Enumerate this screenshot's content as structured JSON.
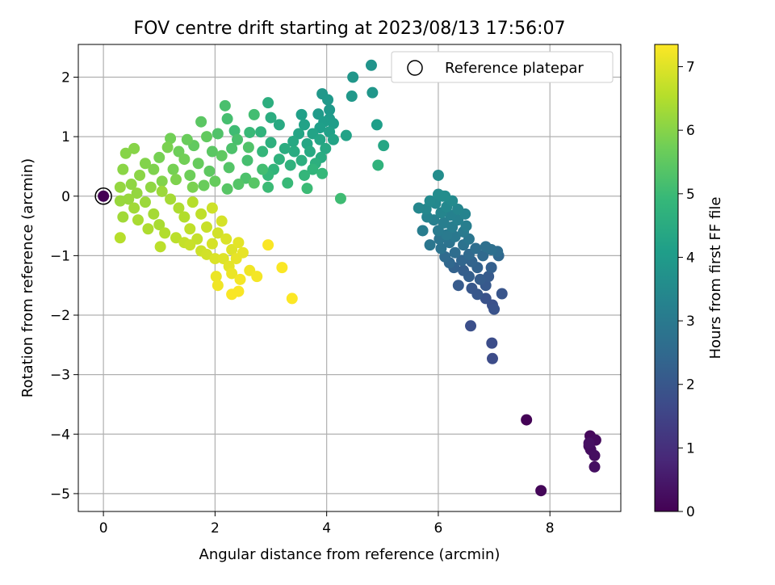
{
  "chart_data": {
    "type": "scatter",
    "title": "FOV centre drift starting at 2023/08/13 17:56:07",
    "xlabel": "Angular distance from reference (arcmin)",
    "ylabel": "Rotation from reference (arcmin)",
    "xlim": [
      -0.45,
      9.27
    ],
    "ylim": [
      -5.3,
      2.55
    ],
    "xticks": [
      0,
      2,
      4,
      6,
      8
    ],
    "yticks": [
      -5,
      -4,
      -3,
      -2,
      -1,
      0,
      1,
      2
    ],
    "xtick_labels": [
      "0",
      "2",
      "4",
      "6",
      "8"
    ],
    "ytick_labels": [
      "−5",
      "−4",
      "−3",
      "−2",
      "−1",
      "0",
      "1",
      "2"
    ],
    "grid": true,
    "legend": {
      "position": "top-right",
      "label": "Reference platepar"
    },
    "reference_point": {
      "x": 0,
      "y": 0
    },
    "colorbar": {
      "label": "Hours from first FF file",
      "range": [
        0,
        7.35
      ],
      "ticks": [
        0,
        1,
        2,
        3,
        4,
        5,
        6,
        7
      ],
      "tick_labels": [
        "0",
        "1",
        "2",
        "3",
        "4",
        "5",
        "6",
        "7"
      ],
      "colormap": "viridis"
    },
    "colormap_stops": [
      "#440154",
      "#482878",
      "#3e4989",
      "#31688e",
      "#26828e",
      "#1f9e89",
      "#35b779",
      "#6ece58",
      "#b5de2b",
      "#fde725"
    ],
    "ref_fill": "#440154",
    "grid_color": "#b0b0b0",
    "points": [
      {
        "x": 7.58,
        "y": -3.76,
        "t": 0.05
      },
      {
        "x": 7.84,
        "y": -4.95,
        "t": 0.1
      },
      {
        "x": 8.72,
        "y": -4.03,
        "t": 0.15
      },
      {
        "x": 8.82,
        "y": -4.1,
        "t": 0.2
      },
      {
        "x": 8.7,
        "y": -4.2,
        "t": 0.22
      },
      {
        "x": 8.73,
        "y": -4.26,
        "t": 0.25
      },
      {
        "x": 8.8,
        "y": -4.36,
        "t": 0.28
      },
      {
        "x": 8.8,
        "y": -4.55,
        "t": 0.3
      },
      {
        "x": 8.7,
        "y": -4.15,
        "t": 0.32
      },
      {
        "x": 6.97,
        "y": -2.73,
        "t": 1.7
      },
      {
        "x": 6.96,
        "y": -2.47,
        "t": 1.75
      },
      {
        "x": 6.58,
        "y": -2.18,
        "t": 1.8
      },
      {
        "x": 6.97,
        "y": -1.83,
        "t": 1.85
      },
      {
        "x": 6.85,
        "y": -1.72,
        "t": 1.9
      },
      {
        "x": 7.0,
        "y": -1.9,
        "t": 1.9
      },
      {
        "x": 7.14,
        "y": -1.64,
        "t": 1.95
      },
      {
        "x": 6.7,
        "y": -1.65,
        "t": 2.0
      },
      {
        "x": 6.6,
        "y": -1.55,
        "t": 2.0
      },
      {
        "x": 6.85,
        "y": -1.5,
        "t": 2.05
      },
      {
        "x": 6.36,
        "y": -1.5,
        "t": 2.1
      },
      {
        "x": 6.9,
        "y": -1.35,
        "t": 2.1
      },
      {
        "x": 6.75,
        "y": -1.4,
        "t": 2.15
      },
      {
        "x": 6.55,
        "y": -1.35,
        "t": 2.2
      },
      {
        "x": 6.45,
        "y": -1.25,
        "t": 2.2
      },
      {
        "x": 6.95,
        "y": -1.2,
        "t": 2.25
      },
      {
        "x": 6.7,
        "y": -1.2,
        "t": 2.3
      },
      {
        "x": 6.28,
        "y": -1.2,
        "t": 2.3
      },
      {
        "x": 6.6,
        "y": -1.1,
        "t": 2.35
      },
      {
        "x": 6.42,
        "y": -1.08,
        "t": 2.4
      },
      {
        "x": 6.2,
        "y": -1.12,
        "t": 2.45
      },
      {
        "x": 7.08,
        "y": -1.0,
        "t": 2.45
      },
      {
        "x": 6.8,
        "y": -1.0,
        "t": 2.5
      },
      {
        "x": 6.55,
        "y": -0.98,
        "t": 2.5
      },
      {
        "x": 6.12,
        "y": -1.02,
        "t": 2.55
      },
      {
        "x": 6.3,
        "y": -0.95,
        "t": 2.6
      },
      {
        "x": 7.06,
        "y": -0.93,
        "t": 2.6
      },
      {
        "x": 6.67,
        "y": -0.88,
        "t": 2.65
      },
      {
        "x": 6.85,
        "y": -0.85,
        "t": 2.7
      },
      {
        "x": 6.95,
        "y": -0.9,
        "t": 2.7
      },
      {
        "x": 6.45,
        "y": -0.82,
        "t": 2.75
      },
      {
        "x": 6.05,
        "y": -0.88,
        "t": 2.8
      },
      {
        "x": 6.2,
        "y": -0.78,
        "t": 2.8
      },
      {
        "x": 6.02,
        "y": -0.72,
        "t": 2.85
      },
      {
        "x": 5.85,
        "y": -0.82,
        "t": 2.9
      },
      {
        "x": 6.55,
        "y": -0.72,
        "t": 2.9
      },
      {
        "x": 6.3,
        "y": -0.68,
        "t": 2.95
      },
      {
        "x": 6.15,
        "y": -0.65,
        "t": 3.0
      },
      {
        "x": 6.45,
        "y": -0.6,
        "t": 3.0
      },
      {
        "x": 6.0,
        "y": -0.58,
        "t": 3.05
      },
      {
        "x": 6.25,
        "y": -0.52,
        "t": 3.1
      },
      {
        "x": 5.72,
        "y": -0.58,
        "t": 3.1
      },
      {
        "x": 6.5,
        "y": -0.5,
        "t": 3.15
      },
      {
        "x": 6.1,
        "y": -0.45,
        "t": 3.15
      },
      {
        "x": 6.35,
        "y": -0.4,
        "t": 3.2
      },
      {
        "x": 5.92,
        "y": -0.4,
        "t": 3.2
      },
      {
        "x": 6.22,
        "y": -0.32,
        "t": 3.25
      },
      {
        "x": 5.8,
        "y": -0.35,
        "t": 3.3
      },
      {
        "x": 6.48,
        "y": -0.3,
        "t": 3.3
      },
      {
        "x": 6.05,
        "y": -0.28,
        "t": 3.35
      },
      {
        "x": 6.35,
        "y": -0.22,
        "t": 3.35
      },
      {
        "x": 5.78,
        "y": -0.22,
        "t": 3.4
      },
      {
        "x": 5.65,
        "y": -0.2,
        "t": 3.4
      },
      {
        "x": 6.15,
        "y": -0.18,
        "t": 3.45
      },
      {
        "x": 5.95,
        "y": -0.12,
        "t": 3.45
      },
      {
        "x": 6.25,
        "y": -0.08,
        "t": 3.5
      },
      {
        "x": 5.85,
        "y": -0.08,
        "t": 3.5
      },
      {
        "x": 6.08,
        "y": 0.0,
        "t": 3.55
      },
      {
        "x": 6.0,
        "y": 0.03,
        "t": 3.55
      },
      {
        "x": 6.12,
        "y": 0.0,
        "t": 3.6
      },
      {
        "x": 6.0,
        "y": 0.35,
        "t": 3.6
      },
      {
        "x": 4.8,
        "y": 2.2,
        "t": 3.8
      },
      {
        "x": 4.47,
        "y": 2.0,
        "t": 3.85
      },
      {
        "x": 4.82,
        "y": 1.74,
        "t": 3.85
      },
      {
        "x": 4.45,
        "y": 1.68,
        "t": 3.9
      },
      {
        "x": 3.92,
        "y": 1.72,
        "t": 3.9
      },
      {
        "x": 4.02,
        "y": 1.62,
        "t": 3.95
      },
      {
        "x": 4.05,
        "y": 1.45,
        "t": 3.95
      },
      {
        "x": 3.85,
        "y": 1.38,
        "t": 4.0
      },
      {
        "x": 4.05,
        "y": 1.3,
        "t": 4.0
      },
      {
        "x": 3.95,
        "y": 1.25,
        "t": 4.05
      },
      {
        "x": 4.12,
        "y": 1.22,
        "t": 4.05
      },
      {
        "x": 4.9,
        "y": 1.2,
        "t": 4.1
      },
      {
        "x": 3.88,
        "y": 1.15,
        "t": 4.1
      },
      {
        "x": 4.05,
        "y": 1.08,
        "t": 4.15
      },
      {
        "x": 3.55,
        "y": 1.37,
        "t": 4.15
      },
      {
        "x": 3.6,
        "y": 1.2,
        "t": 4.2
      },
      {
        "x": 4.35,
        "y": 1.02,
        "t": 4.2
      },
      {
        "x": 4.12,
        "y": 0.95,
        "t": 4.25
      },
      {
        "x": 3.75,
        "y": 1.05,
        "t": 4.25
      },
      {
        "x": 3.5,
        "y": 1.05,
        "t": 4.3
      },
      {
        "x": 3.88,
        "y": 0.95,
        "t": 4.3
      },
      {
        "x": 5.02,
        "y": 0.85,
        "t": 4.35
      },
      {
        "x": 3.65,
        "y": 0.88,
        "t": 4.35
      },
      {
        "x": 3.4,
        "y": 0.92,
        "t": 4.4
      },
      {
        "x": 3.98,
        "y": 0.8,
        "t": 4.4
      },
      {
        "x": 3.15,
        "y": 1.2,
        "t": 4.45
      },
      {
        "x": 3.7,
        "y": 0.75,
        "t": 4.45
      },
      {
        "x": 3.42,
        "y": 0.75,
        "t": 4.5
      },
      {
        "x": 3.9,
        "y": 0.65,
        "t": 4.5
      },
      {
        "x": 3.25,
        "y": 0.8,
        "t": 4.55
      },
      {
        "x": 3.0,
        "y": 1.32,
        "t": 4.55
      },
      {
        "x": 2.95,
        "y": 1.57,
        "t": 4.6
      },
      {
        "x": 3.55,
        "y": 0.6,
        "t": 4.6
      },
      {
        "x": 3.8,
        "y": 0.55,
        "t": 4.65
      },
      {
        "x": 3.0,
        "y": 0.9,
        "t": 4.65
      },
      {
        "x": 3.35,
        "y": 0.52,
        "t": 4.7
      },
      {
        "x": 3.15,
        "y": 0.62,
        "t": 4.7
      },
      {
        "x": 2.82,
        "y": 1.08,
        "t": 4.75
      },
      {
        "x": 4.92,
        "y": 0.52,
        "t": 4.75
      },
      {
        "x": 3.75,
        "y": 0.45,
        "t": 4.8
      },
      {
        "x": 3.05,
        "y": 0.45,
        "t": 4.8
      },
      {
        "x": 2.85,
        "y": 0.75,
        "t": 4.85
      },
      {
        "x": 3.6,
        "y": 0.35,
        "t": 4.85
      },
      {
        "x": 2.95,
        "y": 0.35,
        "t": 4.9
      },
      {
        "x": 3.92,
        "y": 0.38,
        "t": 4.9
      },
      {
        "x": 2.62,
        "y": 1.07,
        "t": 4.95
      },
      {
        "x": 3.3,
        "y": 0.22,
        "t": 4.95
      },
      {
        "x": 2.95,
        "y": 0.15,
        "t": 5.0
      },
      {
        "x": 3.65,
        "y": 0.13,
        "t": 5.0
      },
      {
        "x": 4.25,
        "y": -0.04,
        "t": 5.05
      },
      {
        "x": 2.35,
        "y": 1.1,
        "t": 5.05
      },
      {
        "x": 2.7,
        "y": 1.37,
        "t": 5.1
      },
      {
        "x": 2.85,
        "y": 0.45,
        "t": 5.1
      },
      {
        "x": 2.22,
        "y": 1.3,
        "t": 5.15
      },
      {
        "x": 2.58,
        "y": 0.6,
        "t": 5.15
      },
      {
        "x": 2.4,
        "y": 0.95,
        "t": 5.2
      },
      {
        "x": 2.18,
        "y": 1.52,
        "t": 5.2
      },
      {
        "x": 2.55,
        "y": 0.3,
        "t": 5.25
      },
      {
        "x": 2.3,
        "y": 0.8,
        "t": 5.25
      },
      {
        "x": 2.6,
        "y": 0.82,
        "t": 5.3
      },
      {
        "x": 2.05,
        "y": 1.05,
        "t": 5.3
      },
      {
        "x": 2.25,
        "y": 0.48,
        "t": 5.35
      },
      {
        "x": 2.42,
        "y": 0.2,
        "t": 5.35
      },
      {
        "x": 2.7,
        "y": 0.22,
        "t": 5.4
      },
      {
        "x": 2.22,
        "y": 0.12,
        "t": 5.4
      },
      {
        "x": 1.95,
        "y": 0.75,
        "t": 5.45
      },
      {
        "x": 1.75,
        "y": 1.25,
        "t": 5.45
      },
      {
        "x": 1.9,
        "y": 0.42,
        "t": 5.5
      },
      {
        "x": 2.12,
        "y": 0.68,
        "t": 5.5
      },
      {
        "x": 1.85,
        "y": 1.0,
        "t": 5.55
      },
      {
        "x": 1.62,
        "y": 0.85,
        "t": 5.55
      },
      {
        "x": 2.0,
        "y": 0.25,
        "t": 5.6
      },
      {
        "x": 1.7,
        "y": 0.55,
        "t": 5.6
      },
      {
        "x": 1.5,
        "y": 0.95,
        "t": 5.65
      },
      {
        "x": 1.8,
        "y": 0.18,
        "t": 5.65
      },
      {
        "x": 1.55,
        "y": 0.35,
        "t": 5.7
      },
      {
        "x": 1.35,
        "y": 0.75,
        "t": 5.7
      },
      {
        "x": 1.2,
        "y": 0.97,
        "t": 5.75
      },
      {
        "x": 1.45,
        "y": 0.62,
        "t": 5.75
      },
      {
        "x": 1.25,
        "y": 0.45,
        "t": 5.8
      },
      {
        "x": 1.0,
        "y": 0.65,
        "t": 5.8
      },
      {
        "x": 1.6,
        "y": 0.15,
        "t": 5.85
      },
      {
        "x": 1.15,
        "y": 0.82,
        "t": 5.85
      },
      {
        "x": 1.3,
        "y": 0.28,
        "t": 5.9
      },
      {
        "x": 0.9,
        "y": 0.45,
        "t": 5.9
      },
      {
        "x": 1.05,
        "y": 0.25,
        "t": 5.95
      },
      {
        "x": 0.75,
        "y": 0.55,
        "t": 5.95
      },
      {
        "x": 0.55,
        "y": 0.8,
        "t": 6.0
      },
      {
        "x": 0.4,
        "y": 0.72,
        "t": 6.0
      },
      {
        "x": 0.65,
        "y": 0.35,
        "t": 6.05
      },
      {
        "x": 0.35,
        "y": 0.45,
        "t": 6.05
      },
      {
        "x": 0.85,
        "y": 0.15,
        "t": 6.1
      },
      {
        "x": 0.5,
        "y": 0.2,
        "t": 6.1
      },
      {
        "x": 0.3,
        "y": 0.15,
        "t": 6.15
      },
      {
        "x": 0.6,
        "y": 0.05,
        "t": 6.15
      },
      {
        "x": 0.45,
        "y": -0.05,
        "t": 6.2
      },
      {
        "x": 0.3,
        "y": -0.08,
        "t": 6.2
      },
      {
        "x": 0.75,
        "y": -0.1,
        "t": 6.25
      },
      {
        "x": 1.05,
        "y": 0.08,
        "t": 6.25
      },
      {
        "x": 0.55,
        "y": -0.2,
        "t": 6.3
      },
      {
        "x": 0.35,
        "y": -0.35,
        "t": 6.3
      },
      {
        "x": 0.9,
        "y": -0.3,
        "t": 6.35
      },
      {
        "x": 1.2,
        "y": -0.05,
        "t": 6.35
      },
      {
        "x": 0.62,
        "y": -0.4,
        "t": 6.4
      },
      {
        "x": 1.0,
        "y": -0.48,
        "t": 6.4
      },
      {
        "x": 1.35,
        "y": -0.2,
        "t": 6.45
      },
      {
        "x": 0.8,
        "y": -0.55,
        "t": 6.45
      },
      {
        "x": 1.1,
        "y": -0.62,
        "t": 6.5
      },
      {
        "x": 1.45,
        "y": -0.35,
        "t": 6.5
      },
      {
        "x": 0.3,
        "y": -0.7,
        "t": 6.55
      },
      {
        "x": 1.6,
        "y": -0.1,
        "t": 6.55
      },
      {
        "x": 1.3,
        "y": -0.7,
        "t": 6.6
      },
      {
        "x": 1.02,
        "y": -0.85,
        "t": 6.6
      },
      {
        "x": 1.55,
        "y": -0.55,
        "t": 6.65
      },
      {
        "x": 1.75,
        "y": -0.3,
        "t": 6.65
      },
      {
        "x": 1.45,
        "y": -0.78,
        "t": 6.7
      },
      {
        "x": 1.68,
        "y": -0.72,
        "t": 6.7
      },
      {
        "x": 1.55,
        "y": -0.82,
        "t": 6.75
      },
      {
        "x": 1.85,
        "y": -0.52,
        "t": 6.75
      },
      {
        "x": 1.95,
        "y": -0.2,
        "t": 6.8
      },
      {
        "x": 1.75,
        "y": -0.92,
        "t": 6.8
      },
      {
        "x": 2.05,
        "y": -0.62,
        "t": 6.85
      },
      {
        "x": 1.85,
        "y": -0.98,
        "t": 6.85
      },
      {
        "x": 2.12,
        "y": -0.42,
        "t": 6.9
      },
      {
        "x": 1.95,
        "y": -0.8,
        "t": 6.9
      },
      {
        "x": 2.0,
        "y": -1.05,
        "t": 6.95
      },
      {
        "x": 2.2,
        "y": -0.72,
        "t": 6.95
      },
      {
        "x": 2.3,
        "y": -0.9,
        "t": 7.0
      },
      {
        "x": 2.15,
        "y": -1.05,
        "t": 7.0
      },
      {
        "x": 2.42,
        "y": -0.78,
        "t": 7.05
      },
      {
        "x": 2.25,
        "y": -1.18,
        "t": 7.05
      },
      {
        "x": 2.38,
        "y": -1.05,
        "t": 7.1
      },
      {
        "x": 2.5,
        "y": -0.95,
        "t": 7.1
      },
      {
        "x": 2.02,
        "y": -1.35,
        "t": 7.15
      },
      {
        "x": 2.3,
        "y": -1.3,
        "t": 7.15
      },
      {
        "x": 2.62,
        "y": -1.25,
        "t": 7.2
      },
      {
        "x": 2.05,
        "y": -1.5,
        "t": 7.2
      },
      {
        "x": 2.45,
        "y": -1.4,
        "t": 7.25
      },
      {
        "x": 2.75,
        "y": -1.35,
        "t": 7.25
      },
      {
        "x": 2.3,
        "y": -1.65,
        "t": 7.3
      },
      {
        "x": 2.42,
        "y": -1.6,
        "t": 7.3
      },
      {
        "x": 2.95,
        "y": -0.82,
        "t": 7.3
      },
      {
        "x": 3.2,
        "y": -1.2,
        "t": 7.32
      },
      {
        "x": 3.38,
        "y": -1.72,
        "t": 7.34
      }
    ]
  }
}
